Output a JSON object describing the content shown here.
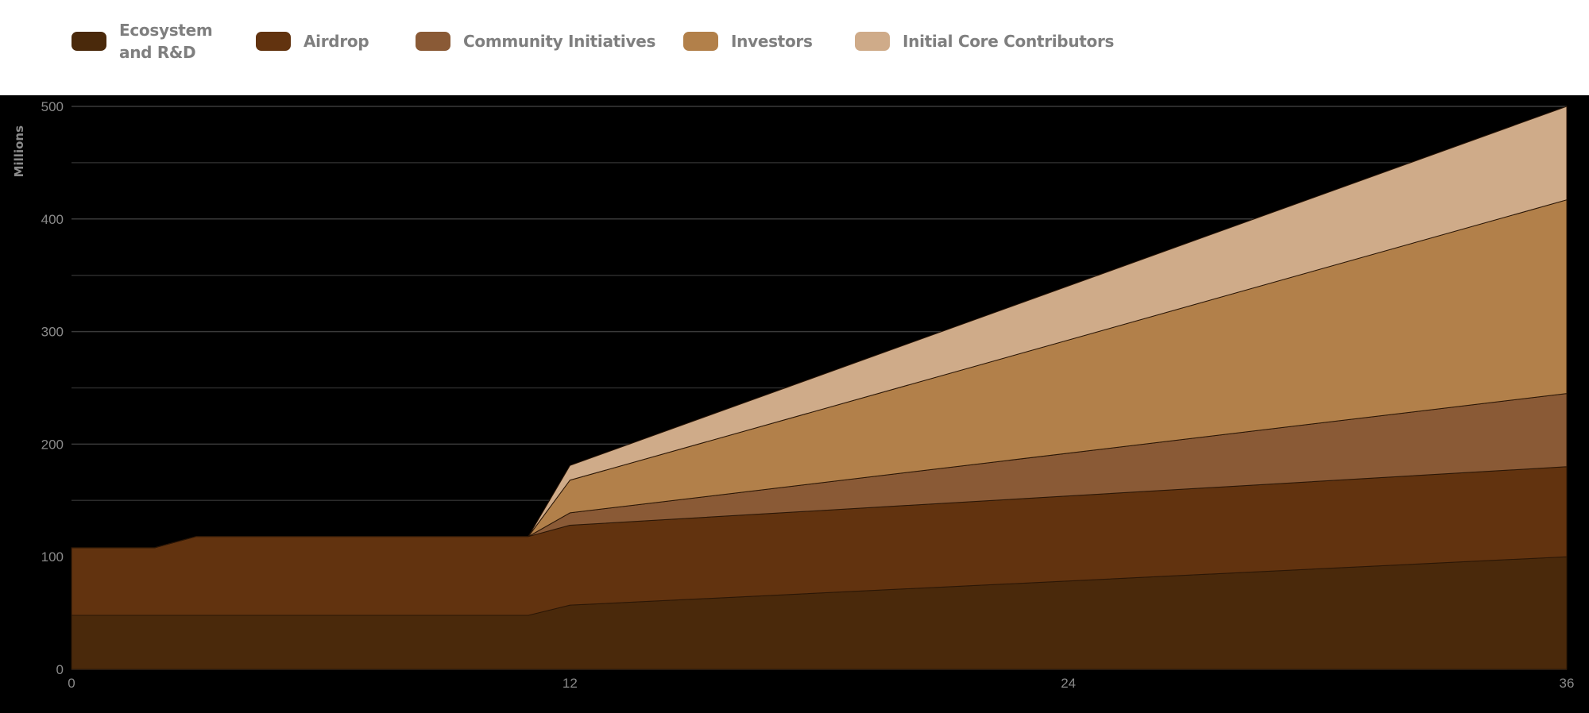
{
  "chart_data": {
    "type": "area",
    "stacked": true,
    "title": "",
    "xlabel": "",
    "ylabel": "Millions",
    "xlim": [
      0,
      36
    ],
    "ylim": [
      0,
      500
    ],
    "xticks": [
      0,
      12,
      24,
      36
    ],
    "yticks": [
      0,
      100,
      200,
      300,
      400,
      500
    ],
    "grid": true,
    "legend_position": "top-left",
    "x": [
      0,
      2,
      3,
      11,
      12,
      36
    ],
    "series": [
      {
        "name": "Ecosystem and R&D",
        "label_lines": [
          "Ecosystem",
          "and R&D"
        ],
        "color": "#4a290b",
        "values": [
          48,
          48,
          48,
          48,
          57,
          100
        ]
      },
      {
        "name": "Airdrop",
        "label_lines": [
          "Airdrop"
        ],
        "color": "#62330f",
        "values": [
          60,
          60,
          70,
          70,
          71,
          80
        ]
      },
      {
        "name": "Community Initiatives",
        "label_lines": [
          "Community Initiatives"
        ],
        "color": "#8a5a36",
        "values": [
          0,
          0,
          0,
          0,
          11,
          65
        ]
      },
      {
        "name": "Investors",
        "label_lines": [
          "Investors"
        ],
        "color": "#b2804a",
        "values": [
          0,
          0,
          0,
          0,
          29,
          172
        ]
      },
      {
        "name": "Initial Core Contributors",
        "label_lines": [
          "Initial Core Contributors"
        ],
        "color": "#cfab89",
        "values": [
          0,
          0,
          0,
          0,
          13,
          83
        ]
      }
    ]
  }
}
